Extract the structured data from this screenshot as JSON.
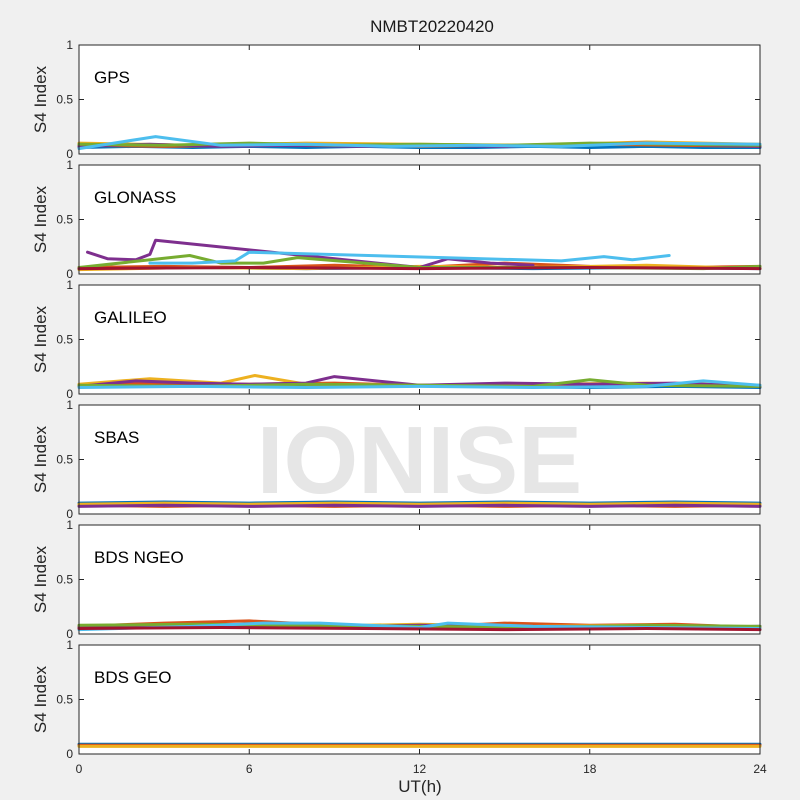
{
  "chart_data": {
    "type": "line",
    "title": "NMBT20220420",
    "xlabel": "UT(h)",
    "ylabel": "S4 Index",
    "xlim": [
      0,
      24
    ],
    "ylim": [
      0,
      1
    ],
    "xticks": [
      "0",
      "6",
      "12",
      "18",
      "24"
    ],
    "yticks": [
      "0",
      "0.5",
      "1"
    ],
    "watermark": "IONISE",
    "series_colors": [
      "#0072BD",
      "#D95319",
      "#EDB120",
      "#7E2F8E",
      "#77AC30",
      "#4DBEEE",
      "#A2142F"
    ],
    "panels": [
      {
        "name": "GPS",
        "series": [
          {
            "x": [
              0,
              2,
              4,
              6,
              8,
              10,
              12,
              14,
              16,
              18,
              20,
              22,
              24
            ],
            "y": [
              0.06,
              0.07,
              0.06,
              0.07,
              0.06,
              0.07,
              0.06,
              0.06,
              0.07,
              0.06,
              0.07,
              0.06,
              0.06
            ]
          },
          {
            "x": [
              0,
              3,
              6,
              9,
              12,
              15,
              18,
              21,
              24
            ],
            "y": [
              0.08,
              0.07,
              0.08,
              0.09,
              0.07,
              0.08,
              0.09,
              0.08,
              0.07
            ]
          },
          {
            "x": [
              0,
              4,
              8,
              12,
              16,
              20,
              24
            ],
            "y": [
              0.1,
              0.08,
              0.1,
              0.09,
              0.08,
              0.11,
              0.09
            ]
          },
          {
            "x": [
              0,
              2.5,
              5,
              7.5,
              10,
              12.5,
              15,
              17.5,
              20,
              22.5,
              24
            ],
            "y": [
              0.07,
              0.09,
              0.07,
              0.08,
              0.07,
              0.08,
              0.07,
              0.09,
              0.1,
              0.08,
              0.07
            ]
          },
          {
            "x": [
              0,
              3,
              6,
              9,
              12,
              15,
              18,
              21,
              24
            ],
            "y": [
              0.09,
              0.08,
              0.1,
              0.08,
              0.09,
              0.08,
              0.1,
              0.09,
              0.08
            ]
          },
          {
            "x": [
              0,
              2.7,
              5,
              8,
              11,
              14,
              17,
              20,
              24
            ],
            "y": [
              0.05,
              0.16,
              0.08,
              0.09,
              0.07,
              0.08,
              0.07,
              0.1,
              0.09
            ]
          }
        ]
      },
      {
        "name": "GLONASS",
        "series": [
          {
            "x": [
              0,
              4,
              8,
              12,
              16,
              20,
              24
            ],
            "y": [
              0.05,
              0.06,
              0.05,
              0.06,
              0.05,
              0.06,
              0.05
            ]
          },
          {
            "x": [
              0,
              3,
              6,
              9,
              12,
              15,
              18,
              21,
              24
            ],
            "y": [
              0.06,
              0.07,
              0.06,
              0.08,
              0.06,
              0.1,
              0.07,
              0.06,
              0.07
            ]
          },
          {
            "x": [
              0,
              4,
              8,
              12,
              16,
              20,
              24
            ],
            "y": [
              0.04,
              0.06,
              0.05,
              0.07,
              0.06,
              0.08,
              0.05
            ]
          },
          {
            "x": [
              0.3,
              1,
              2,
              2.5,
              2.7,
              12,
              13,
              14.5,
              16
            ],
            "y": [
              0.2,
              0.14,
              0.13,
              0.18,
              0.31,
              0.06,
              0.14,
              0.1,
              0.08
            ]
          },
          {
            "x": [
              0,
              3.9,
              5,
              6.5,
              7.7,
              12,
              18,
              22,
              24
            ],
            "y": [
              0.06,
              0.17,
              0.1,
              0.1,
              0.15,
              0.06,
              0.06,
              0.05,
              0.07
            ]
          },
          {
            "x": [
              2.5,
              4,
              5.5,
              6,
              17,
              18.5,
              19.5,
              20.8
            ],
            "y": [
              0.1,
              0.1,
              0.12,
              0.2,
              0.12,
              0.16,
              0.13,
              0.17
            ]
          },
          {
            "x": [
              0,
              6,
              12,
              18,
              24
            ],
            "y": [
              0.05,
              0.06,
              0.05,
              0.06,
              0.05
            ]
          }
        ]
      },
      {
        "name": "GALILEO",
        "series": [
          {
            "x": [
              0,
              3,
              6,
              9,
              12,
              15,
              18,
              21,
              24
            ],
            "y": [
              0.07,
              0.08,
              0.07,
              0.09,
              0.08,
              0.07,
              0.06,
              0.07,
              0.06
            ]
          },
          {
            "x": [
              0,
              3,
              6,
              9,
              12,
              15,
              18,
              21,
              24
            ],
            "y": [
              0.08,
              0.1,
              0.09,
              0.1,
              0.08,
              0.09,
              0.08,
              0.09,
              0.07
            ]
          },
          {
            "x": [
              0,
              2.5,
              5,
              6.2,
              8,
              12,
              16,
              20,
              24
            ],
            "y": [
              0.09,
              0.14,
              0.1,
              0.17,
              0.09,
              0.08,
              0.09,
              0.1,
              0.08
            ]
          },
          {
            "x": [
              0,
              2,
              4,
              6,
              8,
              9,
              12,
              15,
              18,
              21,
              24
            ],
            "y": [
              0.07,
              0.12,
              0.1,
              0.09,
              0.1,
              0.16,
              0.08,
              0.1,
              0.09,
              0.1,
              0.07
            ]
          },
          {
            "x": [
              0,
              4,
              8,
              12,
              16,
              18,
              20,
              24
            ],
            "y": [
              0.08,
              0.07,
              0.09,
              0.08,
              0.07,
              0.13,
              0.08,
              0.07
            ]
          },
          {
            "x": [
              0,
              4,
              8,
              12,
              16,
              20,
              22,
              24
            ],
            "y": [
              0.06,
              0.07,
              0.06,
              0.07,
              0.06,
              0.07,
              0.12,
              0.08
            ]
          }
        ]
      },
      {
        "name": "SBAS",
        "series": [
          {
            "x": [
              0,
              3,
              6,
              9,
              12,
              15,
              18,
              21,
              24
            ],
            "y": [
              0.1,
              0.11,
              0.1,
              0.11,
              0.1,
              0.11,
              0.1,
              0.11,
              0.1
            ]
          },
          {
            "x": [
              0,
              3,
              6,
              9,
              12,
              15,
              18,
              21,
              24
            ],
            "y": [
              0.08,
              0.07,
              0.08,
              0.07,
              0.08,
              0.07,
              0.08,
              0.07,
              0.08
            ]
          },
          {
            "x": [
              0,
              3,
              6,
              9,
              12,
              15,
              18,
              21,
              24
            ],
            "y": [
              0.09,
              0.1,
              0.09,
              0.1,
              0.09,
              0.1,
              0.09,
              0.1,
              0.09
            ]
          },
          {
            "x": [
              0,
              3,
              6,
              9,
              12,
              15,
              18,
              21,
              24
            ],
            "y": [
              0.07,
              0.08,
              0.07,
              0.08,
              0.07,
              0.08,
              0.07,
              0.08,
              0.07
            ]
          }
        ]
      },
      {
        "name": "BDS NGEO",
        "series": [
          {
            "x": [
              0,
              3,
              6,
              9,
              12,
              15,
              18,
              21,
              24
            ],
            "y": [
              0.06,
              0.07,
              0.06,
              0.07,
              0.05,
              0.06,
              0.05,
              0.06,
              0.07
            ]
          },
          {
            "x": [
              0,
              3,
              6,
              9,
              12,
              15,
              18,
              21,
              24
            ],
            "y": [
              0.07,
              0.1,
              0.12,
              0.08,
              0.06,
              0.1,
              0.08,
              0.09,
              0.06
            ]
          },
          {
            "x": [
              0,
              4,
              8,
              12,
              16,
              20,
              24
            ],
            "y": [
              0.05,
              0.08,
              0.07,
              0.09,
              0.07,
              0.08,
              0.06
            ]
          },
          {
            "x": [
              0,
              4,
              8,
              12,
              16,
              20,
              24
            ],
            "y": [
              0.06,
              0.07,
              0.06,
              0.08,
              0.07,
              0.06,
              0.07
            ]
          },
          {
            "x": [
              0,
              4,
              8,
              12,
              16,
              20,
              24
            ],
            "y": [
              0.08,
              0.09,
              0.08,
              0.07,
              0.06,
              0.08,
              0.07
            ]
          },
          {
            "x": [
              0,
              4,
              6.5,
              8.5,
              12,
              13,
              16,
              20,
              24
            ],
            "y": [
              0.04,
              0.07,
              0.1,
              0.1,
              0.06,
              0.1,
              0.07,
              0.06,
              0.05
            ]
          },
          {
            "x": [
              0,
              5,
              10,
              15,
              20,
              24
            ],
            "y": [
              0.05,
              0.06,
              0.05,
              0.04,
              0.05,
              0.04
            ]
          }
        ]
      },
      {
        "name": "BDS GEO",
        "series": [
          {
            "x": [
              0,
              6,
              12,
              18,
              24
            ],
            "y": [
              0.09,
              0.09,
              0.09,
              0.09,
              0.09
            ]
          },
          {
            "x": [
              0,
              6,
              12,
              18,
              24
            ],
            "y": [
              0.08,
              0.08,
              0.08,
              0.08,
              0.08
            ]
          },
          {
            "x": [
              0,
              6,
              12,
              18,
              24
            ],
            "y": [
              0.07,
              0.07,
              0.07,
              0.07,
              0.07
            ]
          }
        ]
      }
    ]
  }
}
